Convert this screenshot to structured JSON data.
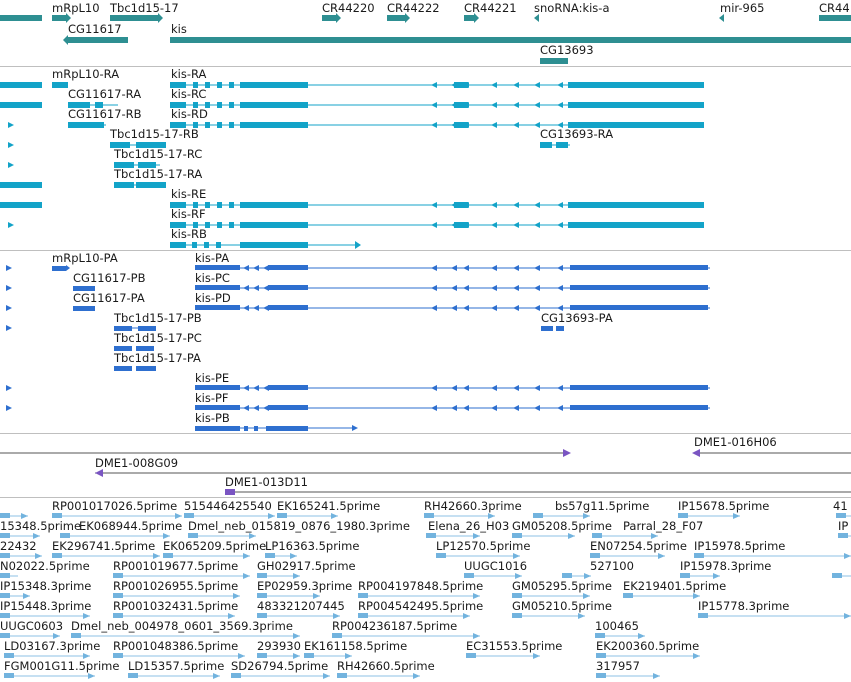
{
  "colors": {
    "gene": "#2e8f92",
    "mrna": "#13a3c8",
    "protein": "#2e6fcf",
    "bac": "#7a55c2",
    "est": "#72b3de",
    "est_line": "#8cc2e6",
    "separator": "#bfbfbf",
    "text": "#1a1a1a"
  },
  "tracks": {
    "genes": {
      "labels": [
        "mRpL10",
        "Tbc1d15-17",
        "CR44220",
        "CR44222",
        "CR44221",
        "snoRNA:kis-a",
        "mir-965",
        "CR44",
        "CG11617",
        "kis",
        "CG13693"
      ]
    },
    "transcripts": {
      "labels": [
        "mRpL10-RA",
        "kis-RA",
        "CG11617-RA",
        "kis-RC",
        "CG11617-RB",
        "kis-RD",
        "Tbc1d15-17-RB",
        "CG13693-RA",
        "Tbc1d15-17-RC",
        "Tbc1d15-17-RA",
        "kis-RE",
        "kis-RF",
        "kis-RB"
      ]
    },
    "proteins": {
      "labels": [
        "mRpL10-PA",
        "kis-PA",
        "CG11617-PB",
        "kis-PC",
        "CG11617-PA",
        "kis-PD",
        "Tbc1d15-17-PB",
        "CG13693-PA",
        "Tbc1d15-17-PC",
        "Tbc1d15-17-PA",
        "kis-PE",
        "kis-PF",
        "kis-PB"
      ]
    },
    "bacs": {
      "labels": [
        "DME1-016H06",
        "DME1-008G09",
        "DME1-013D11"
      ]
    },
    "ests": {
      "labels": [
        "RP001017026.5prime",
        "515446425540",
        "EK165241.5prime",
        "RH42660.3prime",
        "bs57g11.5prime",
        "IP15678.5prime",
        "41",
        "15348.5prime",
        "EK068944.5prime",
        "Dmel_neb_015819_0876_1980.3prime",
        "Elena_26_H03",
        "GM05208.5prime",
        "Parral_28_F07",
        "IP",
        "22432",
        "EK296741.5prime",
        "EK065209.5prime",
        "LP16363.5prime",
        "LP12570.5prime",
        "EN07254.5prime",
        "IP15978.5prime",
        "N02022.5prime",
        "RP001019677.5prime",
        "GH02917.5prime",
        "UUGC1016",
        "527100",
        "IP15978.3prime",
        "IP15348.3prime",
        "RP001026955.5prime",
        "EP02959.3prime",
        "RP004197848.5prime",
        "GM05295.5prime",
        "EK219401.5prime",
        "IP15448.3prime",
        "RP001032431.5prime",
        "483321207445",
        "RP004542495.5prime",
        "GM05210.5prime",
        "IP15778.3prime",
        "UUGC0603",
        "Dmel_neb_004978_0601_3569.3prime",
        "RP004236187.5prime",
        "100465",
        "LD03167.3prime",
        "RP001048386.5prime",
        "293930",
        "EK161158.5prime",
        "EC31553.5prime",
        "EK200360.5prime",
        "FGM001G11.5prime",
        "LD15357.5prime",
        "SD26794.5prime",
        "RH42660.5prime",
        "317957"
      ]
    }
  }
}
